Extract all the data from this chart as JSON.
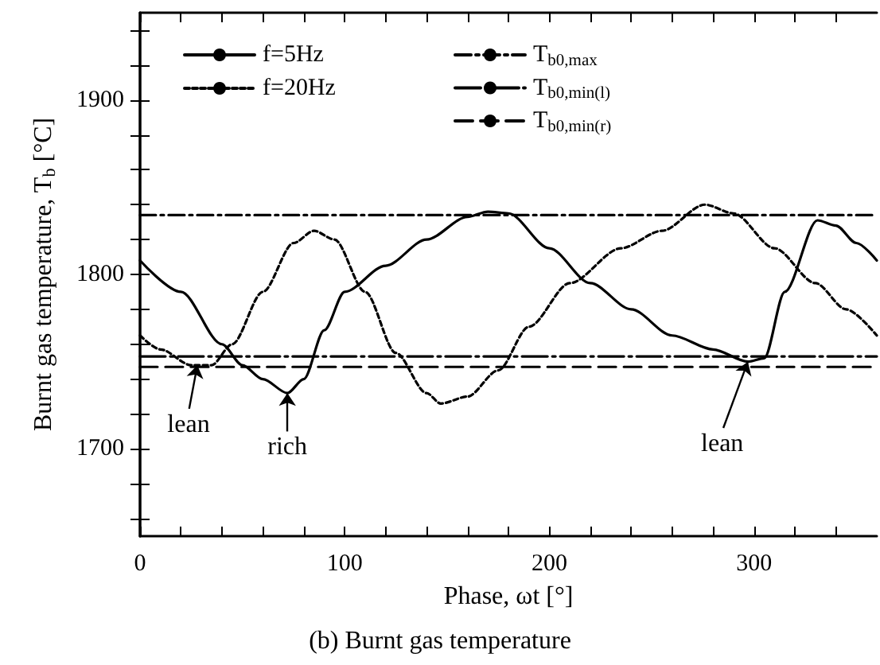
{
  "chart_data": {
    "type": "line",
    "title": "(b) Burnt gas temperature",
    "xlabel": "Phase, ωt [°]",
    "ylabel": "Burnt gas temperature, T$_{b}$ [°C]",
    "xlim": [
      0,
      360
    ],
    "xticks": [
      0,
      {
        "value": 20,
        "label": null
      },
      {
        "value": 40,
        "label": null
      },
      {
        "value": 60,
        "label": null
      },
      {
        "value": 80,
        "label": null
      },
      100,
      {
        "value": 120,
        "label": null
      },
      {
        "value": 140,
        "label": null
      },
      {
        "value": 160,
        "label": null
      },
      {
        "value": 180,
        "label": null
      },
      200,
      {
        "value": 220,
        "label": null
      },
      {
        "value": 240,
        "label": null
      },
      {
        "value": 260,
        "label": null
      },
      {
        "value": 280,
        "label": null
      },
      300,
      {
        "value": 320,
        "label": null
      },
      {
        "value": 340,
        "label": null
      }
    ],
    "ylim": [
      1650,
      1950
    ],
    "yticks": [
      {
        "value": 1660,
        "label": null
      },
      {
        "value": 1680,
        "label": null
      },
      1700,
      {
        "value": 1720,
        "label": null
      },
      {
        "value": 1740,
        "label": null
      },
      {
        "value": 1760,
        "label": null
      },
      {
        "value": 1780,
        "label": null
      },
      1800,
      {
        "value": 1820,
        "label": null
      },
      {
        "value": 1840,
        "label": null
      },
      {
        "value": 1860,
        "label": null
      },
      {
        "value": 1880,
        "label": null
      },
      1900,
      {
        "value": 1920,
        "label": null
      },
      {
        "value": 1940,
        "label": null
      }
    ],
    "grid": false,
    "legend": "top left",
    "marker": "none",
    "series": [
      {
        "name": "f=5Hz",
        "color": "#000000",
        "line_style": "solid",
        "x": [
          0,
          20,
          40,
          50,
          60,
          72,
          80,
          90,
          100,
          120,
          140,
          160,
          170,
          180,
          200,
          220,
          240,
          260,
          280,
          297,
          305,
          315,
          331,
          340,
          350,
          360
        ],
        "values": [
          1808,
          1790,
          1760,
          1748,
          1740,
          1732,
          1740,
          1768,
          1790,
          1805,
          1820,
          1833,
          1836,
          1835,
          1815,
          1795,
          1780,
          1765,
          1757,
          1750,
          1752,
          1790,
          1831,
          1828,
          1818,
          1808
        ]
      },
      {
        "name": "f=20Hz",
        "color": "#000000",
        "line_style": "dotted",
        "x": [
          0,
          10,
          25,
          35,
          45,
          60,
          75,
          85,
          95,
          110,
          125,
          140,
          147,
          160,
          175,
          190,
          210,
          235,
          255,
          276,
          290,
          310,
          330,
          345,
          360
        ],
        "values": [
          1765,
          1757,
          1748,
          1748,
          1760,
          1790,
          1818,
          1825,
          1820,
          1790,
          1755,
          1732,
          1726,
          1730,
          1745,
          1770,
          1795,
          1815,
          1825,
          1840,
          1835,
          1815,
          1795,
          1780,
          1765
        ]
      },
      {
        "name": "T$_{b0,max}$",
        "color": "#000000",
        "line_style": "dashdot",
        "x": [
          0,
          360
        ],
        "values": [
          1834,
          1834
        ]
      },
      {
        "name": "T$_{b0,min(l)}$",
        "color": "#000000",
        "line_style": "longdashdot",
        "x": [
          0,
          360
        ],
        "values": [
          1753,
          1753
        ]
      },
      {
        "name": "T$_{b0,min(r)}$",
        "color": "#000000",
        "line_style": "dashed",
        "x": [
          0,
          360
        ],
        "values": [
          1747,
          1747
        ]
      }
    ],
    "annotations": [
      {
        "text": "lean",
        "x": 28,
        "y": 1748
      },
      {
        "text": "rich",
        "x": 72,
        "y": 1732
      },
      {
        "text": "lean",
        "x": 297,
        "y": 1750
      }
    ]
  }
}
